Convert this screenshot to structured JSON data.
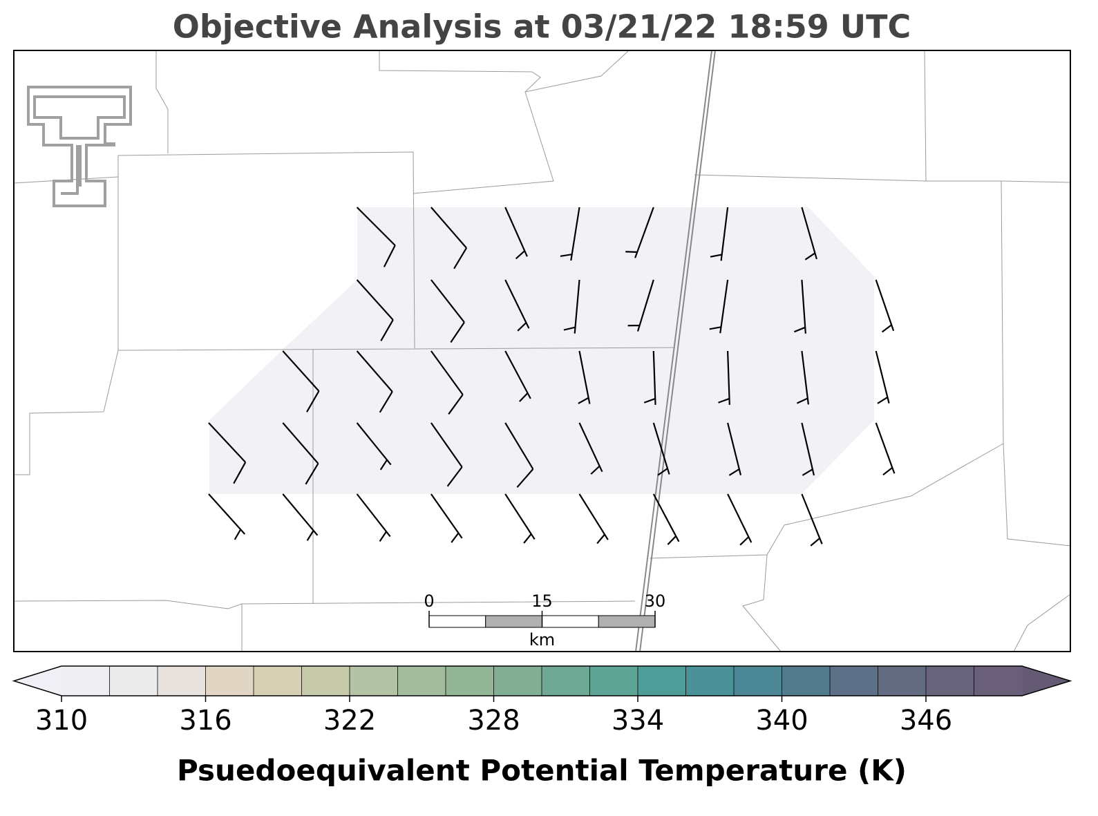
{
  "title": "Objective Analysis at 03/21/22 18:59 UTC",
  "wind_barbs": {
    "units": "kt",
    "rows": [
      [
        null,
        null,
        {
          "direction": 135,
          "speed": 10
        },
        {
          "direction": 139,
          "speed": 10
        },
        {
          "direction": 156,
          "speed": 5
        },
        {
          "direction": 189,
          "speed": 5
        },
        {
          "direction": 200,
          "speed": 5
        },
        {
          "direction": 187,
          "speed": 5
        },
        {
          "direction": 164,
          "speed": 5
        },
        null
      ],
      [
        null,
        null,
        {
          "direction": 138,
          "speed": 10
        },
        {
          "direction": 142,
          "speed": 10
        },
        {
          "direction": 154,
          "speed": 5
        },
        {
          "direction": 185,
          "speed": 5
        },
        {
          "direction": 197,
          "speed": 5
        },
        {
          "direction": 188,
          "speed": 5
        },
        {
          "direction": 176,
          "speed": 5
        },
        {
          "direction": 161,
          "speed": 5
        }
      ],
      [
        null,
        {
          "direction": 138,
          "speed": 10
        },
        {
          "direction": 139,
          "speed": 10
        },
        {
          "direction": 144,
          "speed": 10
        },
        {
          "direction": 152,
          "speed": 5
        },
        {
          "direction": 169,
          "speed": 5
        },
        {
          "direction": 178,
          "speed": 5
        },
        {
          "direction": 178,
          "speed": 5
        },
        {
          "direction": 173,
          "speed": 5
        },
        {
          "direction": 166,
          "speed": 5
        }
      ],
      [
        {
          "direction": 137,
          "speed": 10
        },
        {
          "direction": 139,
          "speed": 10
        },
        {
          "direction": 141,
          "speed": 5
        },
        {
          "direction": 145,
          "speed": 10
        },
        {
          "direction": 149,
          "speed": 10
        },
        {
          "direction": 155,
          "speed": 5
        },
        {
          "direction": 163,
          "speed": 5
        },
        {
          "direction": 166,
          "speed": 5
        },
        {
          "direction": 167,
          "speed": 5
        },
        {
          "direction": 160,
          "speed": 5
        }
      ],
      [
        {
          "direction": 138,
          "speed": 5
        },
        {
          "direction": 140,
          "speed": 5
        },
        {
          "direction": 142,
          "speed": 5
        },
        {
          "direction": 145,
          "speed": 5
        },
        {
          "direction": 147,
          "speed": 5
        },
        {
          "direction": 148,
          "speed": 5
        },
        {
          "direction": 152,
          "speed": 5
        },
        {
          "direction": 154,
          "speed": 5
        },
        {
          "direction": 158,
          "speed": 5
        },
        null
      ]
    ]
  },
  "scale_bar": {
    "ticks": [
      0,
      15,
      30
    ],
    "unit": "km",
    "colors": [
      "#ffffff",
      "#b0b0b0"
    ]
  },
  "colorbar": {
    "label": "Psuedoequivalent Potential Temperature (K)",
    "clim": [
      310,
      350
    ],
    "ticks": [
      310,
      316,
      322,
      328,
      334,
      340,
      346
    ],
    "under_color": "#f1f0f6",
    "over_color": "#655a74",
    "colors": [
      "#efeef2",
      "#ecebeb",
      "#e7e2dd",
      "#e1d6c4",
      "#d6cfb3",
      "#c6c9aa",
      "#b4c3a5",
      "#a4bc9e",
      "#93b598",
      "#82ae96",
      "#6fa894",
      "#5ea596",
      "#4f9d98",
      "#4b9298",
      "#4c8795",
      "#537b8e",
      "#5d7087",
      "#636b80",
      "#66637b",
      "#6a5f78"
    ]
  }
}
